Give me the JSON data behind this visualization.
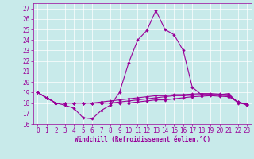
{
  "xlabel": "Windchill (Refroidissement éolien,°C)",
  "background_color": "#c8eaea",
  "grid_color": "#ffffff",
  "line_color": "#990099",
  "x_ticks": [
    0,
    1,
    2,
    3,
    4,
    5,
    6,
    7,
    8,
    9,
    10,
    11,
    12,
    13,
    14,
    15,
    16,
    17,
    18,
    19,
    20,
    21,
    22,
    23
  ],
  "ylim": [
    16,
    27.5
  ],
  "xlim": [
    -0.5,
    23.5
  ],
  "yticks": [
    16,
    17,
    18,
    19,
    20,
    21,
    22,
    23,
    24,
    25,
    26,
    27
  ],
  "series1": [
    19.0,
    18.5,
    18.0,
    17.8,
    17.5,
    16.6,
    16.5,
    17.3,
    17.8,
    19.0,
    21.8,
    24.0,
    24.9,
    26.8,
    25.0,
    24.5,
    23.0,
    19.5,
    18.8,
    18.8,
    18.8,
    18.9,
    18.0,
    17.9
  ],
  "series2": [
    19.0,
    18.5,
    18.0,
    18.0,
    18.0,
    18.0,
    18.0,
    18.1,
    18.2,
    18.3,
    18.4,
    18.5,
    18.6,
    18.7,
    18.7,
    18.8,
    18.8,
    18.85,
    18.9,
    18.9,
    18.85,
    18.8,
    18.1,
    17.9
  ],
  "series3": [
    19.0,
    18.5,
    18.0,
    18.0,
    18.0,
    18.0,
    18.0,
    18.0,
    18.0,
    18.1,
    18.2,
    18.3,
    18.4,
    18.5,
    18.6,
    18.7,
    18.7,
    18.75,
    18.8,
    18.8,
    18.75,
    18.7,
    18.1,
    17.85
  ],
  "series4": [
    19.0,
    18.5,
    18.0,
    18.0,
    18.0,
    18.0,
    18.0,
    18.0,
    18.0,
    18.0,
    18.0,
    18.1,
    18.2,
    18.3,
    18.3,
    18.4,
    18.5,
    18.6,
    18.65,
    18.7,
    18.65,
    18.6,
    18.1,
    17.8
  ],
  "font": "monospace",
  "tick_fontsize": 5.5,
  "xlabel_fontsize": 5.5,
  "linewidth": 0.8,
  "markersize": 2.2
}
